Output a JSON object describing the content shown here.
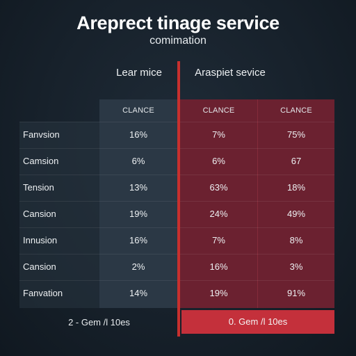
{
  "header": {
    "title": "Areprect tinage service",
    "subtitle": "comimation"
  },
  "columns": {
    "left_group_label": "Lear mice",
    "right_group_label": "Araspiet sevice",
    "headers": [
      "CLANCE",
      "CLANCE",
      "CLANCE"
    ]
  },
  "rows": [
    {
      "label": "Fanvsion",
      "values": [
        "16%",
        "7%",
        "75%"
      ]
    },
    {
      "label": "Camsion",
      "values": [
        "6%",
        "6%",
        "67"
      ]
    },
    {
      "label": "Tension",
      "values": [
        "13%",
        "63%",
        "18%"
      ]
    },
    {
      "label": "Cansion",
      "values": [
        "19%",
        "24%",
        "49%"
      ]
    },
    {
      "label": "Innusion",
      "values": [
        "16%",
        "7%",
        "8%"
      ]
    },
    {
      "label": "Cansion",
      "values": [
        "2%",
        "16%",
        "3%"
      ]
    },
    {
      "label": "Fanvation",
      "values": [
        "14%",
        "19%",
        "91%"
      ]
    }
  ],
  "footer": {
    "left": "2 - Gem /l 10es",
    "right": "0. Gem /l 10es"
  },
  "colors": {
    "accent_red": "#c8302e",
    "panel_red": "#6b2130",
    "panel_dark": "#2b3845",
    "background": "#17212b"
  }
}
